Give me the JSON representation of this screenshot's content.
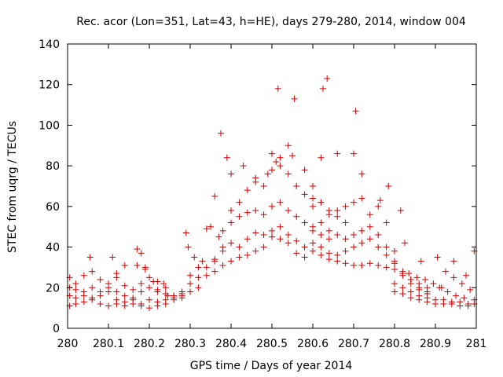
{
  "chart_data": {
    "type": "scatter",
    "title": "Rec. acor (Lon=351, Lat=43, h=HE), days 279-280, 2014, window 004",
    "xlabel": "GPS time / Days of year 2014",
    "ylabel": "STEC from uqrg / TECUs",
    "xlim": [
      280,
      281
    ],
    "ylim": [
      0,
      140
    ],
    "xticks": [
      280,
      280.1,
      280.2,
      280.3,
      280.4,
      280.5,
      280.6,
      280.7,
      280.8,
      280.9,
      281
    ],
    "xtick_labels": [
      "280",
      "280.1",
      "280.2",
      "280.3",
      "280.4",
      "280.5",
      "280.6",
      "280.7",
      "280.8",
      "280.9",
      "281"
    ],
    "yticks": [
      0,
      20,
      40,
      60,
      80,
      100,
      120,
      140
    ],
    "ytick_labels": [
      "0",
      "20",
      "40",
      "60",
      "80",
      "100",
      "120",
      "140"
    ],
    "marker": "plus",
    "marker_color": "#cc0000",
    "grid": false,
    "legend": "none",
    "series": [
      {
        "name": "STEC",
        "points": [
          [
            280.005,
            25
          ],
          [
            280.02,
            22
          ],
          [
            280.04,
            26
          ],
          [
            280.06,
            28
          ],
          [
            280.08,
            24
          ],
          [
            280.1,
            22
          ],
          [
            280.12,
            25
          ],
          [
            280.14,
            21
          ],
          [
            280.16,
            19
          ],
          [
            280.18,
            22
          ],
          [
            280.2,
            25
          ],
          [
            280.22,
            23
          ],
          [
            280.24,
            20
          ],
          [
            280.26,
            16
          ],
          [
            280.28,
            18
          ],
          [
            280.005,
            20
          ],
          [
            280.02,
            19
          ],
          [
            280.04,
            18
          ],
          [
            280.06,
            20
          ],
          [
            280.08,
            18
          ],
          [
            280.1,
            20
          ],
          [
            280.12,
            18
          ],
          [
            280.14,
            16
          ],
          [
            280.16,
            15
          ],
          [
            280.18,
            18
          ],
          [
            280.2,
            20
          ],
          [
            280.22,
            19
          ],
          [
            280.24,
            17
          ],
          [
            280.26,
            15
          ],
          [
            280.28,
            16
          ],
          [
            280.005,
            16
          ],
          [
            280.02,
            15
          ],
          [
            280.04,
            16
          ],
          [
            280.06,
            14
          ],
          [
            280.08,
            16
          ],
          [
            280.1,
            18
          ],
          [
            280.12,
            14
          ],
          [
            280.14,
            13
          ],
          [
            280.16,
            14
          ],
          [
            280.18,
            12
          ],
          [
            280.2,
            14
          ],
          [
            280.22,
            13
          ],
          [
            280.24,
            14
          ],
          [
            280.26,
            16
          ],
          [
            280.28,
            15
          ],
          [
            280.005,
            11
          ],
          [
            280.02,
            12
          ],
          [
            280.04,
            13
          ],
          [
            280.06,
            15
          ],
          [
            280.08,
            12
          ],
          [
            280.1,
            11
          ],
          [
            280.12,
            12
          ],
          [
            280.14,
            11
          ],
          [
            280.16,
            12
          ],
          [
            280.18,
            11
          ],
          [
            280.2,
            10
          ],
          [
            280.22,
            11
          ],
          [
            280.24,
            12
          ],
          [
            280.26,
            14
          ],
          [
            280.28,
            17
          ],
          [
            280.055,
            35
          ],
          [
            280.11,
            35
          ],
          [
            280.17,
            39
          ],
          [
            280.18,
            37
          ],
          [
            280.19,
            30
          ],
          [
            280.17,
            31
          ],
          [
            280.19,
            29
          ],
          [
            280.14,
            31
          ],
          [
            280.12,
            27
          ],
          [
            280.21,
            23
          ],
          [
            280.22,
            18
          ],
          [
            280.235,
            22
          ],
          [
            280.245,
            16
          ],
          [
            280.29,
            47
          ],
          [
            280.295,
            40
          ],
          [
            280.3,
            26
          ],
          [
            280.31,
            35
          ],
          [
            280.32,
            30
          ],
          [
            280.33,
            33
          ],
          [
            280.34,
            49
          ],
          [
            280.35,
            50
          ],
          [
            280.36,
            65
          ],
          [
            280.375,
            96
          ],
          [
            280.39,
            84
          ],
          [
            280.37,
            45
          ],
          [
            280.38,
            48
          ],
          [
            280.3,
            18
          ],
          [
            280.32,
            20
          ],
          [
            280.34,
            26
          ],
          [
            280.36,
            28
          ],
          [
            280.38,
            31
          ],
          [
            280.4,
            33
          ],
          [
            280.42,
            35
          ],
          [
            280.44,
            36
          ],
          [
            280.46,
            38
          ],
          [
            280.48,
            40
          ],
          [
            280.5,
            45
          ],
          [
            280.52,
            44
          ],
          [
            280.54,
            42
          ],
          [
            280.56,
            37
          ],
          [
            280.58,
            35
          ],
          [
            280.3,
            22
          ],
          [
            280.32,
            25
          ],
          [
            280.34,
            30
          ],
          [
            280.36,
            33
          ],
          [
            280.38,
            38
          ],
          [
            280.4,
            42
          ],
          [
            280.42,
            40
          ],
          [
            280.44,
            44
          ],
          [
            280.46,
            47
          ],
          [
            280.48,
            46
          ],
          [
            280.5,
            48
          ],
          [
            280.52,
            50
          ],
          [
            280.54,
            46
          ],
          [
            280.56,
            43
          ],
          [
            280.58,
            40
          ],
          [
            280.36,
            34
          ],
          [
            280.38,
            40
          ],
          [
            280.4,
            52
          ],
          [
            280.42,
            55
          ],
          [
            280.44,
            57
          ],
          [
            280.46,
            58
          ],
          [
            280.48,
            56
          ],
          [
            280.5,
            60
          ],
          [
            280.52,
            62
          ],
          [
            280.54,
            58
          ],
          [
            280.56,
            55
          ],
          [
            280.58,
            52
          ],
          [
            280.6,
            48
          ],
          [
            280.62,
            46
          ],
          [
            280.64,
            44
          ],
          [
            280.4,
            58
          ],
          [
            280.42,
            62
          ],
          [
            280.44,
            68
          ],
          [
            280.46,
            72
          ],
          [
            280.48,
            70
          ],
          [
            280.5,
            78
          ],
          [
            280.52,
            80
          ],
          [
            280.54,
            76
          ],
          [
            280.56,
            70
          ],
          [
            280.58,
            66
          ],
          [
            280.6,
            64
          ],
          [
            280.62,
            62
          ],
          [
            280.64,
            58
          ],
          [
            280.66,
            55
          ],
          [
            280.68,
            52
          ],
          [
            280.4,
            76
          ],
          [
            280.43,
            80
          ],
          [
            280.46,
            74
          ],
          [
            280.49,
            76
          ],
          [
            280.5,
            86
          ],
          [
            280.51,
            82
          ],
          [
            280.52,
            84
          ],
          [
            280.54,
            90
          ],
          [
            280.55,
            85
          ],
          [
            280.58,
            78
          ],
          [
            280.6,
            70
          ],
          [
            280.62,
            84
          ],
          [
            280.66,
            86
          ],
          [
            280.7,
            86
          ],
          [
            280.72,
            76
          ],
          [
            280.515,
            118
          ],
          [
            280.555,
            113
          ],
          [
            280.625,
            118
          ],
          [
            280.635,
            123
          ],
          [
            280.705,
            107
          ],
          [
            280.6,
            38
          ],
          [
            280.62,
            36
          ],
          [
            280.64,
            34
          ],
          [
            280.66,
            33
          ],
          [
            280.68,
            32
          ],
          [
            280.7,
            31
          ],
          [
            280.72,
            31
          ],
          [
            280.74,
            32
          ],
          [
            280.76,
            31
          ],
          [
            280.78,
            30
          ],
          [
            280.8,
            29
          ],
          [
            280.82,
            27
          ],
          [
            280.84,
            24
          ],
          [
            280.86,
            22
          ],
          [
            280.88,
            20
          ],
          [
            280.6,
            42
          ],
          [
            280.62,
            40
          ],
          [
            280.64,
            37
          ],
          [
            280.66,
            36
          ],
          [
            280.68,
            38
          ],
          [
            280.7,
            40
          ],
          [
            280.72,
            42
          ],
          [
            280.74,
            44
          ],
          [
            280.76,
            40
          ],
          [
            280.78,
            36
          ],
          [
            280.8,
            32
          ],
          [
            280.82,
            26
          ],
          [
            280.84,
            22
          ],
          [
            280.86,
            19
          ],
          [
            280.88,
            18
          ],
          [
            280.6,
            50
          ],
          [
            280.62,
            52
          ],
          [
            280.64,
            48
          ],
          [
            280.66,
            46
          ],
          [
            280.68,
            44
          ],
          [
            280.7,
            46
          ],
          [
            280.72,
            48
          ],
          [
            280.74,
            50
          ],
          [
            280.76,
            46
          ],
          [
            280.78,
            40
          ],
          [
            280.8,
            33
          ],
          [
            280.82,
            28
          ],
          [
            280.84,
            24
          ],
          [
            280.86,
            20
          ],
          [
            280.88,
            17
          ],
          [
            280.6,
            60
          ],
          [
            280.62,
            62
          ],
          [
            280.64,
            56
          ],
          [
            280.66,
            58
          ],
          [
            280.68,
            60
          ],
          [
            280.7,
            62
          ],
          [
            280.72,
            64
          ],
          [
            280.74,
            56
          ],
          [
            280.76,
            60
          ],
          [
            280.78,
            52
          ],
          [
            280.8,
            38
          ],
          [
            280.815,
            58
          ],
          [
            280.825,
            42
          ],
          [
            280.785,
            70
          ],
          [
            280.765,
            63
          ],
          [
            280.8,
            22
          ],
          [
            280.82,
            20
          ],
          [
            280.84,
            18
          ],
          [
            280.86,
            16
          ],
          [
            280.88,
            15
          ],
          [
            280.9,
            14
          ],
          [
            280.92,
            14
          ],
          [
            280.94,
            13
          ],
          [
            280.96,
            13
          ],
          [
            280.98,
            12
          ],
          [
            280.995,
            12
          ],
          [
            280.97,
            15
          ],
          [
            280.95,
            16
          ],
          [
            280.93,
            18
          ],
          [
            280.91,
            20
          ],
          [
            280.8,
            18
          ],
          [
            280.82,
            17
          ],
          [
            280.84,
            15
          ],
          [
            280.86,
            14
          ],
          [
            280.88,
            13
          ],
          [
            280.9,
            12
          ],
          [
            280.92,
            12
          ],
          [
            280.94,
            12
          ],
          [
            280.96,
            11
          ],
          [
            280.98,
            11
          ],
          [
            280.995,
            14
          ],
          [
            280.985,
            19
          ],
          [
            280.965,
            22
          ],
          [
            280.945,
            25
          ],
          [
            280.925,
            28
          ],
          [
            280.865,
            33
          ],
          [
            280.905,
            35
          ],
          [
            280.945,
            33
          ],
          [
            280.975,
            26
          ],
          [
            280.995,
            38
          ],
          [
            280.855,
            25
          ],
          [
            280.835,
            27
          ],
          [
            280.875,
            24
          ],
          [
            280.895,
            22
          ],
          [
            280.915,
            20
          ]
        ]
      }
    ]
  }
}
